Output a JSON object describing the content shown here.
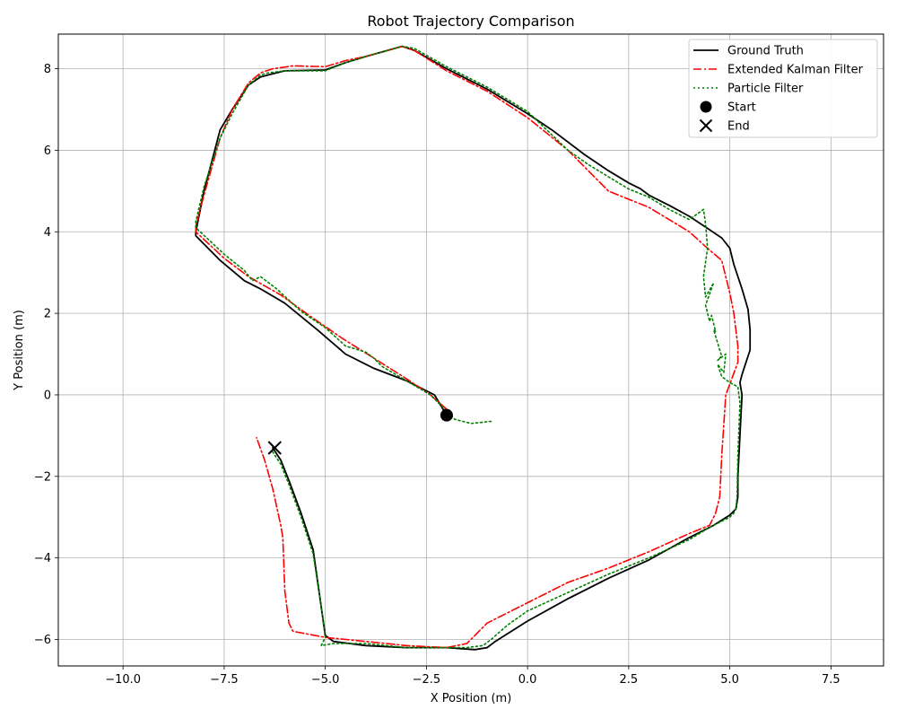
{
  "chart_data": {
    "type": "line",
    "title": "Robot Trajectory Comparison",
    "xlabel": "X Position (m)",
    "ylabel": "Y Position (m)",
    "xlim": [
      -11.6,
      8.8
    ],
    "ylim": [
      -6.65,
      8.85
    ],
    "xticks": [
      -10.0,
      -7.5,
      -5.0,
      -2.5,
      0.0,
      2.5,
      5.0,
      7.5
    ],
    "xtick_labels": [
      "−10.0",
      "−7.5",
      "−5.0",
      "−2.5",
      "0.0",
      "2.5",
      "5.0",
      "7.5"
    ],
    "yticks": [
      -6,
      -4,
      -2,
      0,
      2,
      4,
      6,
      8
    ],
    "ytick_labels": [
      "−6",
      "−4",
      "−2",
      "0",
      "2",
      "4",
      "6",
      "8"
    ],
    "grid": true,
    "legend_position": "top-right",
    "series": [
      {
        "name": "Ground Truth",
        "color": "#000000",
        "style": "solid",
        "x": [
          -2.0,
          -2.3,
          -3.0,
          -3.8,
          -4.5,
          -5.2,
          -6.0,
          -6.6,
          -7.0,
          -7.6,
          -8.2,
          -8.2,
          -8.0,
          -7.6,
          -7.3,
          -6.9,
          -6.6,
          -6.4,
          -6.0,
          -5.0,
          -4.5,
          -4.0,
          -3.1,
          -2.8,
          -2.0,
          -1.0,
          0.0,
          0.6,
          1.4,
          2.0,
          2.5,
          2.8,
          3.0,
          3.5,
          4.0,
          4.5,
          4.8,
          5.0,
          5.1,
          5.3,
          5.45,
          5.5,
          5.5,
          5.4,
          5.3,
          5.25,
          5.3,
          5.25,
          5.2,
          5.2,
          5.15,
          5.0,
          4.6,
          4.0,
          3.0,
          2.0,
          1.0,
          0.0,
          -0.4,
          -0.8,
          -1.0,
          -1.3,
          -2.0,
          -3.0,
          -4.0,
          -4.8,
          -5.0,
          -5.1,
          -5.3,
          -5.6,
          -5.9,
          -6.1,
          -6.3
        ],
        "y": [
          -0.5,
          0.0,
          0.35,
          0.65,
          1.0,
          1.6,
          2.25,
          2.6,
          2.8,
          3.3,
          3.9,
          4.0,
          5.0,
          6.5,
          7.0,
          7.6,
          7.8,
          7.85,
          7.95,
          7.97,
          8.15,
          8.3,
          8.55,
          8.45,
          8.0,
          7.5,
          6.9,
          6.5,
          5.9,
          5.5,
          5.2,
          5.05,
          4.9,
          4.65,
          4.38,
          4.05,
          3.85,
          3.6,
          3.2,
          2.6,
          2.1,
          1.6,
          1.1,
          0.8,
          0.5,
          0.3,
          0.0,
          -1.0,
          -2.0,
          -2.5,
          -2.8,
          -2.95,
          -3.2,
          -3.5,
          -4.05,
          -4.5,
          -5.0,
          -5.55,
          -5.8,
          -6.05,
          -6.2,
          -6.25,
          -6.2,
          -6.2,
          -6.15,
          -6.05,
          -5.9,
          -5.2,
          -3.8,
          -2.9,
          -2.1,
          -1.6,
          -1.3
        ]
      },
      {
        "name": "Extended Kalman Filter",
        "color": "#ff0000",
        "style": "dashdot",
        "x": [
          -2.0,
          -2.4,
          -3.0,
          -3.8,
          -4.6,
          -5.4,
          -6.1,
          -6.9,
          -7.5,
          -8.2,
          -8.2,
          -8.0,
          -7.6,
          -7.3,
          -6.9,
          -6.6,
          -6.3,
          -5.8,
          -5.0,
          -4.5,
          -4.0,
          -3.1,
          -2.8,
          -2.0,
          -1.0,
          0.0,
          1.0,
          2.0,
          3.0,
          4.0,
          4.5,
          4.8,
          5.0,
          5.1,
          5.2,
          5.2,
          5.05,
          4.9,
          4.8,
          4.75,
          4.65,
          4.5,
          4.0,
          3.0,
          2.0,
          1.0,
          0.0,
          -1.0,
          -1.5,
          -2.0,
          -3.0,
          -4.0,
          -5.0,
          -5.8,
          -5.9,
          -6.0,
          -6.05,
          -6.1,
          -6.3,
          -6.5,
          -6.7
        ],
        "y": [
          -0.35,
          0.0,
          0.4,
          0.9,
          1.4,
          1.95,
          2.45,
          2.9,
          3.35,
          4.0,
          4.15,
          4.9,
          6.3,
          7.0,
          7.65,
          7.9,
          8.0,
          8.07,
          8.05,
          8.2,
          8.3,
          8.55,
          8.45,
          7.95,
          7.45,
          6.8,
          6.0,
          5.0,
          4.6,
          4.0,
          3.55,
          3.3,
          2.5,
          2.0,
          1.2,
          0.8,
          0.4,
          0.0,
          -1.5,
          -2.5,
          -2.9,
          -3.2,
          -3.4,
          -3.85,
          -4.25,
          -4.6,
          -5.1,
          -5.6,
          -6.1,
          -6.2,
          -6.15,
          -6.05,
          -5.95,
          -5.8,
          -5.6,
          -4.8,
          -3.5,
          -3.2,
          -2.3,
          -1.6,
          -1.05
        ]
      },
      {
        "name": "Particle Filter",
        "color": "#008000",
        "style": "dotted",
        "x": [
          -0.9,
          -1.4,
          -1.8,
          -2.0,
          -2.4,
          -3.0,
          -3.6,
          -3.8,
          -4.0,
          -4.5,
          -5.0,
          -5.6,
          -6.2,
          -6.6,
          -6.8,
          -7.0,
          -7.5,
          -8.2,
          -8.2,
          -8.0,
          -7.6,
          -7.3,
          -6.9,
          -6.6,
          -6.4,
          -6.0,
          -5.0,
          -4.5,
          -4.0,
          -3.1,
          -2.8,
          -2.0,
          -1.0,
          0.0,
          1.0,
          1.5,
          2.0,
          2.5,
          3.0,
          3.5,
          4.0,
          4.35,
          4.4,
          4.45,
          4.35,
          4.4,
          4.6,
          4.4,
          4.5,
          4.55,
          4.65,
          4.6,
          4.75,
          4.8,
          4.7,
          4.9,
          4.85,
          4.7,
          4.8,
          5.0,
          5.2,
          5.25,
          5.2,
          5.18,
          5.15,
          5.1,
          5.0,
          4.5,
          4.0,
          3.0,
          2.0,
          1.0,
          0.0,
          -0.5,
          -0.9,
          -1.1,
          -1.5,
          -2.0,
          -3.0,
          -4.0,
          -4.8,
          -5.1,
          -5.0,
          -5.1,
          -5.3,
          -5.6,
          -5.9,
          -6.1,
          -6.3
        ],
        "y": [
          -0.65,
          -0.7,
          -0.6,
          -0.4,
          0.0,
          0.35,
          0.7,
          0.9,
          1.05,
          1.2,
          1.65,
          2.05,
          2.6,
          2.9,
          2.8,
          3.05,
          3.45,
          4.1,
          4.25,
          5.1,
          6.3,
          6.9,
          7.6,
          7.85,
          7.9,
          7.95,
          7.95,
          8.15,
          8.3,
          8.55,
          8.5,
          8.05,
          7.55,
          6.95,
          6.0,
          5.65,
          5.35,
          5.05,
          4.85,
          4.55,
          4.3,
          4.55,
          4.2,
          3.6,
          2.9,
          2.4,
          2.75,
          2.2,
          1.8,
          1.95,
          1.55,
          1.6,
          1.1,
          0.95,
          0.85,
          1.0,
          0.55,
          0.75,
          0.45,
          0.3,
          0.2,
          -0.2,
          -1.5,
          -2.5,
          -2.8,
          -2.9,
          -3.0,
          -3.25,
          -3.55,
          -4.0,
          -4.4,
          -4.85,
          -5.3,
          -5.65,
          -6.0,
          -6.15,
          -6.2,
          -6.2,
          -6.2,
          -6.1,
          -6.1,
          -6.15,
          -5.95,
          -5.2,
          -3.9,
          -3.0,
          -2.2,
          -1.7,
          -1.4
        ]
      }
    ],
    "markers": [
      {
        "name": "Start",
        "x": -2.0,
        "y": -0.5,
        "symbol": "circle",
        "color": "#000000"
      },
      {
        "name": "End",
        "x": -6.25,
        "y": -1.3,
        "symbol": "x",
        "color": "#000000"
      }
    ]
  }
}
